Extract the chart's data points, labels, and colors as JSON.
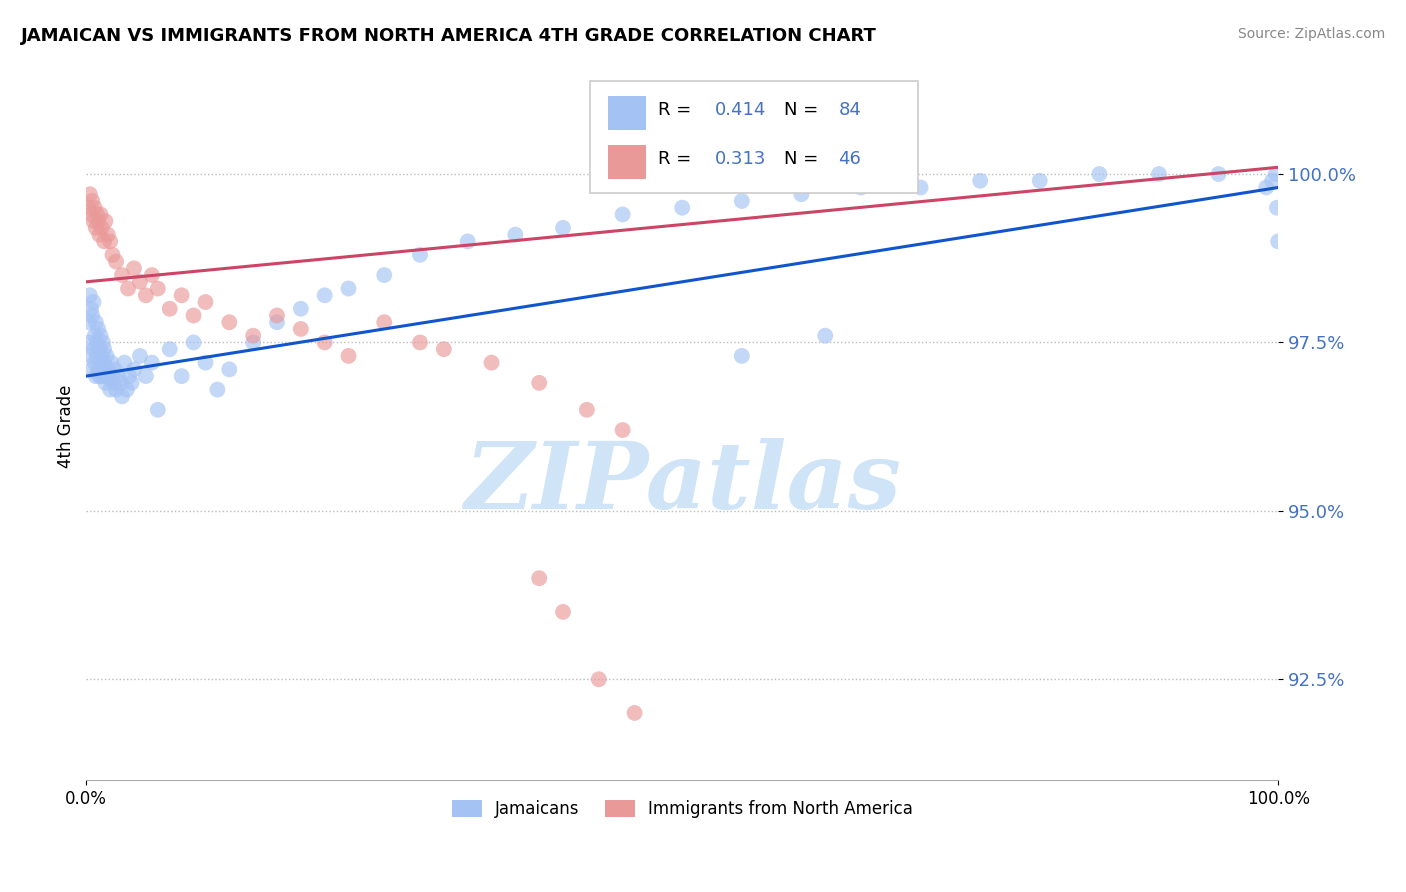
{
  "title": "JAMAICAN VS IMMIGRANTS FROM NORTH AMERICA 4TH GRADE CORRELATION CHART",
  "source": "Source: ZipAtlas.com",
  "ylabel": "4th Grade",
  "ytick_values": [
    92.5,
    95.0,
    97.5,
    100.0
  ],
  "xlim": [
    0.0,
    100.0
  ],
  "ylim": [
    91.0,
    101.5
  ],
  "legend_blue_r": "0.414",
  "legend_blue_n": "84",
  "legend_pink_r": "0.313",
  "legend_pink_n": "46",
  "blue_color": "#a4c2f4",
  "pink_color": "#ea9999",
  "blue_line_color": "#1155cc",
  "pink_line_color": "#cc4466",
  "watermark": "ZIPatlas",
  "watermark_color": "#d0e4f7",
  "blue_x": [
    0.2,
    0.3,
    0.3,
    0.4,
    0.4,
    0.5,
    0.5,
    0.6,
    0.6,
    0.7,
    0.7,
    0.8,
    0.8,
    0.9,
    0.9,
    1.0,
    1.0,
    1.1,
    1.1,
    1.2,
    1.2,
    1.3,
    1.3,
    1.4,
    1.4,
    1.5,
    1.5,
    1.6,
    1.6,
    1.7,
    1.8,
    1.9,
    2.0,
    2.1,
    2.2,
    2.3,
    2.4,
    2.5,
    2.7,
    2.9,
    3.0,
    3.2,
    3.4,
    3.6,
    3.8,
    4.0,
    4.5,
    5.0,
    5.5,
    6.0,
    7.0,
    8.0,
    9.0,
    10.0,
    11.0,
    12.0,
    14.0,
    16.0,
    18.0,
    20.0,
    22.0,
    25.0,
    28.0,
    32.0,
    36.0,
    40.0,
    45.0,
    50.0,
    55.0,
    60.0,
    65.0,
    70.0,
    75.0,
    80.0,
    85.0,
    90.0,
    95.0,
    99.0,
    99.5,
    99.8,
    99.9,
    100.0,
    55.0,
    62.0
  ],
  "blue_y": [
    97.8,
    98.2,
    97.5,
    98.0,
    97.3,
    97.9,
    97.1,
    98.1,
    97.4,
    97.6,
    97.2,
    97.8,
    97.0,
    97.5,
    97.3,
    97.7,
    97.1,
    97.4,
    97.0,
    97.6,
    97.2,
    97.3,
    97.0,
    97.5,
    97.1,
    97.4,
    97.2,
    97.0,
    96.9,
    97.3,
    97.1,
    97.0,
    96.8,
    97.2,
    97.0,
    96.9,
    97.1,
    96.8,
    97.0,
    96.9,
    96.7,
    97.2,
    96.8,
    97.0,
    96.9,
    97.1,
    97.3,
    97.0,
    97.2,
    96.5,
    97.4,
    97.0,
    97.5,
    97.2,
    96.8,
    97.1,
    97.5,
    97.8,
    98.0,
    98.2,
    98.3,
    98.5,
    98.8,
    99.0,
    99.1,
    99.2,
    99.4,
    99.5,
    99.6,
    99.7,
    99.8,
    99.8,
    99.9,
    99.9,
    100.0,
    100.0,
    100.0,
    99.8,
    99.9,
    100.0,
    99.5,
    99.0,
    97.3,
    97.6
  ],
  "pink_x": [
    0.2,
    0.3,
    0.4,
    0.5,
    0.6,
    0.7,
    0.8,
    0.9,
    1.0,
    1.1,
    1.2,
    1.3,
    1.5,
    1.6,
    1.8,
    2.0,
    2.2,
    2.5,
    3.0,
    3.5,
    4.0,
    4.5,
    5.0,
    5.5,
    6.0,
    7.0,
    8.0,
    9.0,
    10.0,
    12.0,
    14.0,
    16.0,
    18.0,
    20.0,
    22.0,
    25.0,
    28.0,
    30.0,
    34.0,
    38.0,
    42.0,
    45.0,
    38.0,
    40.0,
    43.0,
    46.0
  ],
  "pink_y": [
    99.5,
    99.7,
    99.4,
    99.6,
    99.3,
    99.5,
    99.2,
    99.4,
    99.3,
    99.1,
    99.4,
    99.2,
    99.0,
    99.3,
    99.1,
    99.0,
    98.8,
    98.7,
    98.5,
    98.3,
    98.6,
    98.4,
    98.2,
    98.5,
    98.3,
    98.0,
    98.2,
    97.9,
    98.1,
    97.8,
    97.6,
    97.9,
    97.7,
    97.5,
    97.3,
    97.8,
    97.5,
    97.4,
    97.2,
    96.9,
    96.5,
    96.2,
    94.0,
    93.5,
    92.5,
    92.0
  ],
  "blue_trendline_x": [
    0,
    100
  ],
  "blue_trendline_y": [
    97.0,
    99.8
  ],
  "pink_trendline_x": [
    0,
    100
  ],
  "pink_trendline_y": [
    98.4,
    100.1
  ]
}
